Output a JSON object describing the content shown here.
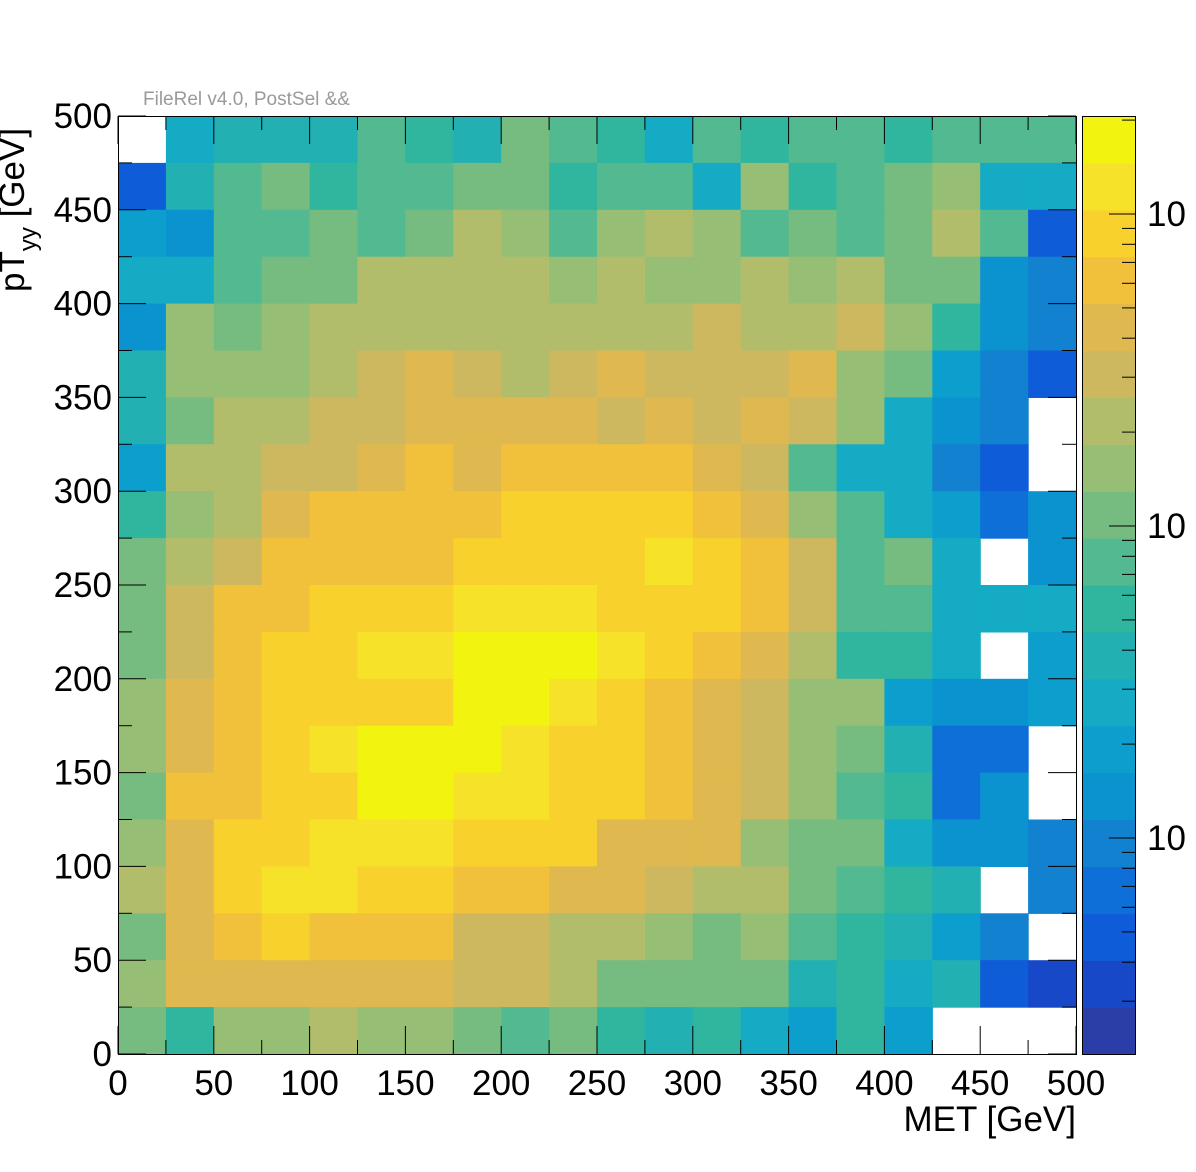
{
  "header": {
    "label": "FileRel v4.0, PostSel &&"
  },
  "chart_data": {
    "type": "heatmap",
    "title": "",
    "xlabel": "MET [GeV]",
    "ylabel": "pT_{yy} [GeV]",
    "xlim": [
      0,
      500
    ],
    "ylim": [
      0,
      500
    ],
    "x_ticks": [
      0,
      50,
      100,
      150,
      200,
      250,
      300,
      350,
      400,
      450,
      500
    ],
    "y_ticks": [
      0,
      50,
      100,
      150,
      200,
      250,
      300,
      350,
      400,
      450,
      500
    ],
    "bins": 20,
    "bin_width": 25,
    "colorbar": {
      "scale": "log",
      "visible_labels": [
        "10",
        "10",
        "10"
      ]
    },
    "palette": [
      "#2b3ea8",
      "#1748c8",
      "#0f5cd8",
      "#0f6fd8",
      "#1281d0",
      "#0b93cf",
      "#0c9fce",
      "#15abc4",
      "#22b0b2",
      "#30b69e",
      "#52b990",
      "#76bc80",
      "#96be75",
      "#b2bd6c",
      "#cdb860",
      "#dfb94f",
      "#f2c13c",
      "#f9d12c",
      "#f5e229",
      "#f2f40f"
    ],
    "level_note": "values are palette levels 0-19 (log-scaled color); null = empty bin",
    "rows_top_to_bottom": [
      [
        null,
        7,
        8,
        8,
        8,
        10,
        9,
        8,
        11,
        10,
        9,
        7,
        10,
        9,
        10,
        10,
        9,
        10,
        10,
        10
      ],
      [
        2,
        8,
        10,
        11,
        9,
        10,
        10,
        11,
        11,
        9,
        10,
        10,
        7,
        12,
        9,
        10,
        11,
        12,
        7,
        7
      ],
      [
        6,
        5,
        10,
        10,
        11,
        10,
        11,
        13,
        12,
        10,
        12,
        13,
        12,
        10,
        11,
        10,
        11,
        13,
        10,
        2
      ],
      [
        7,
        7,
        10,
        11,
        11,
        13,
        13,
        13,
        13,
        12,
        13,
        12,
        12,
        13,
        12,
        13,
        11,
        11,
        5,
        4
      ],
      [
        5,
        12,
        11,
        12,
        13,
        13,
        13,
        13,
        13,
        13,
        13,
        13,
        14,
        13,
        13,
        14,
        12,
        9,
        5,
        4
      ],
      [
        8,
        12,
        12,
        12,
        13,
        14,
        15,
        14,
        13,
        14,
        15,
        14,
        14,
        14,
        15,
        12,
        11,
        6,
        4,
        2
      ],
      [
        8,
        11,
        13,
        13,
        14,
        14,
        15,
        15,
        15,
        15,
        14,
        15,
        14,
        15,
        14,
        12,
        7,
        5,
        4,
        null
      ],
      [
        6,
        13,
        13,
        14,
        14,
        15,
        16,
        15,
        16,
        16,
        16,
        16,
        15,
        14,
        10,
        7,
        7,
        4,
        2,
        null
      ],
      [
        9,
        12,
        13,
        15,
        16,
        16,
        16,
        16,
        17,
        17,
        17,
        17,
        16,
        15,
        12,
        10,
        7,
        6,
        3,
        5
      ],
      [
        11,
        13,
        14,
        16,
        16,
        16,
        16,
        17,
        17,
        17,
        17,
        18,
        17,
        16,
        14,
        10,
        11,
        7,
        null,
        5
      ],
      [
        11,
        14,
        16,
        16,
        17,
        17,
        17,
        18,
        18,
        18,
        17,
        17,
        17,
        16,
        14,
        10,
        10,
        7,
        7,
        7
      ],
      [
        11,
        14,
        16,
        17,
        17,
        18,
        18,
        19,
        19,
        19,
        18,
        17,
        16,
        15,
        13,
        9,
        9,
        7,
        null,
        6
      ],
      [
        12,
        15,
        16,
        17,
        17,
        17,
        17,
        19,
        19,
        18,
        17,
        16,
        15,
        14,
        12,
        12,
        6,
        5,
        5,
        6
      ],
      [
        12,
        15,
        16,
        17,
        18,
        19,
        19,
        19,
        18,
        17,
        17,
        16,
        15,
        14,
        12,
        11,
        8,
        3,
        3,
        null
      ],
      [
        11,
        16,
        16,
        17,
        17,
        19,
        19,
        18,
        18,
        17,
        17,
        16,
        15,
        14,
        12,
        10,
        9,
        3,
        5,
        null
      ],
      [
        12,
        15,
        17,
        17,
        18,
        18,
        18,
        17,
        17,
        17,
        15,
        15,
        15,
        12,
        11,
        11,
        7,
        5,
        5,
        4
      ],
      [
        13,
        15,
        17,
        18,
        18,
        17,
        17,
        16,
        16,
        15,
        15,
        14,
        13,
        13,
        11,
        10,
        9,
        8,
        null,
        4
      ],
      [
        11,
        15,
        16,
        17,
        16,
        16,
        16,
        14,
        14,
        13,
        13,
        12,
        11,
        12,
        10,
        9,
        8,
        6,
        4,
        null
      ],
      [
        12,
        15,
        15,
        15,
        15,
        15,
        15,
        14,
        14,
        13,
        11,
        11,
        11,
        11,
        8,
        9,
        7,
        8,
        2,
        1
      ],
      [
        11,
        9,
        12,
        12,
        13,
        12,
        12,
        11,
        10,
        11,
        9,
        8,
        9,
        7,
        6,
        9,
        6,
        null,
        null,
        null
      ]
    ]
  }
}
